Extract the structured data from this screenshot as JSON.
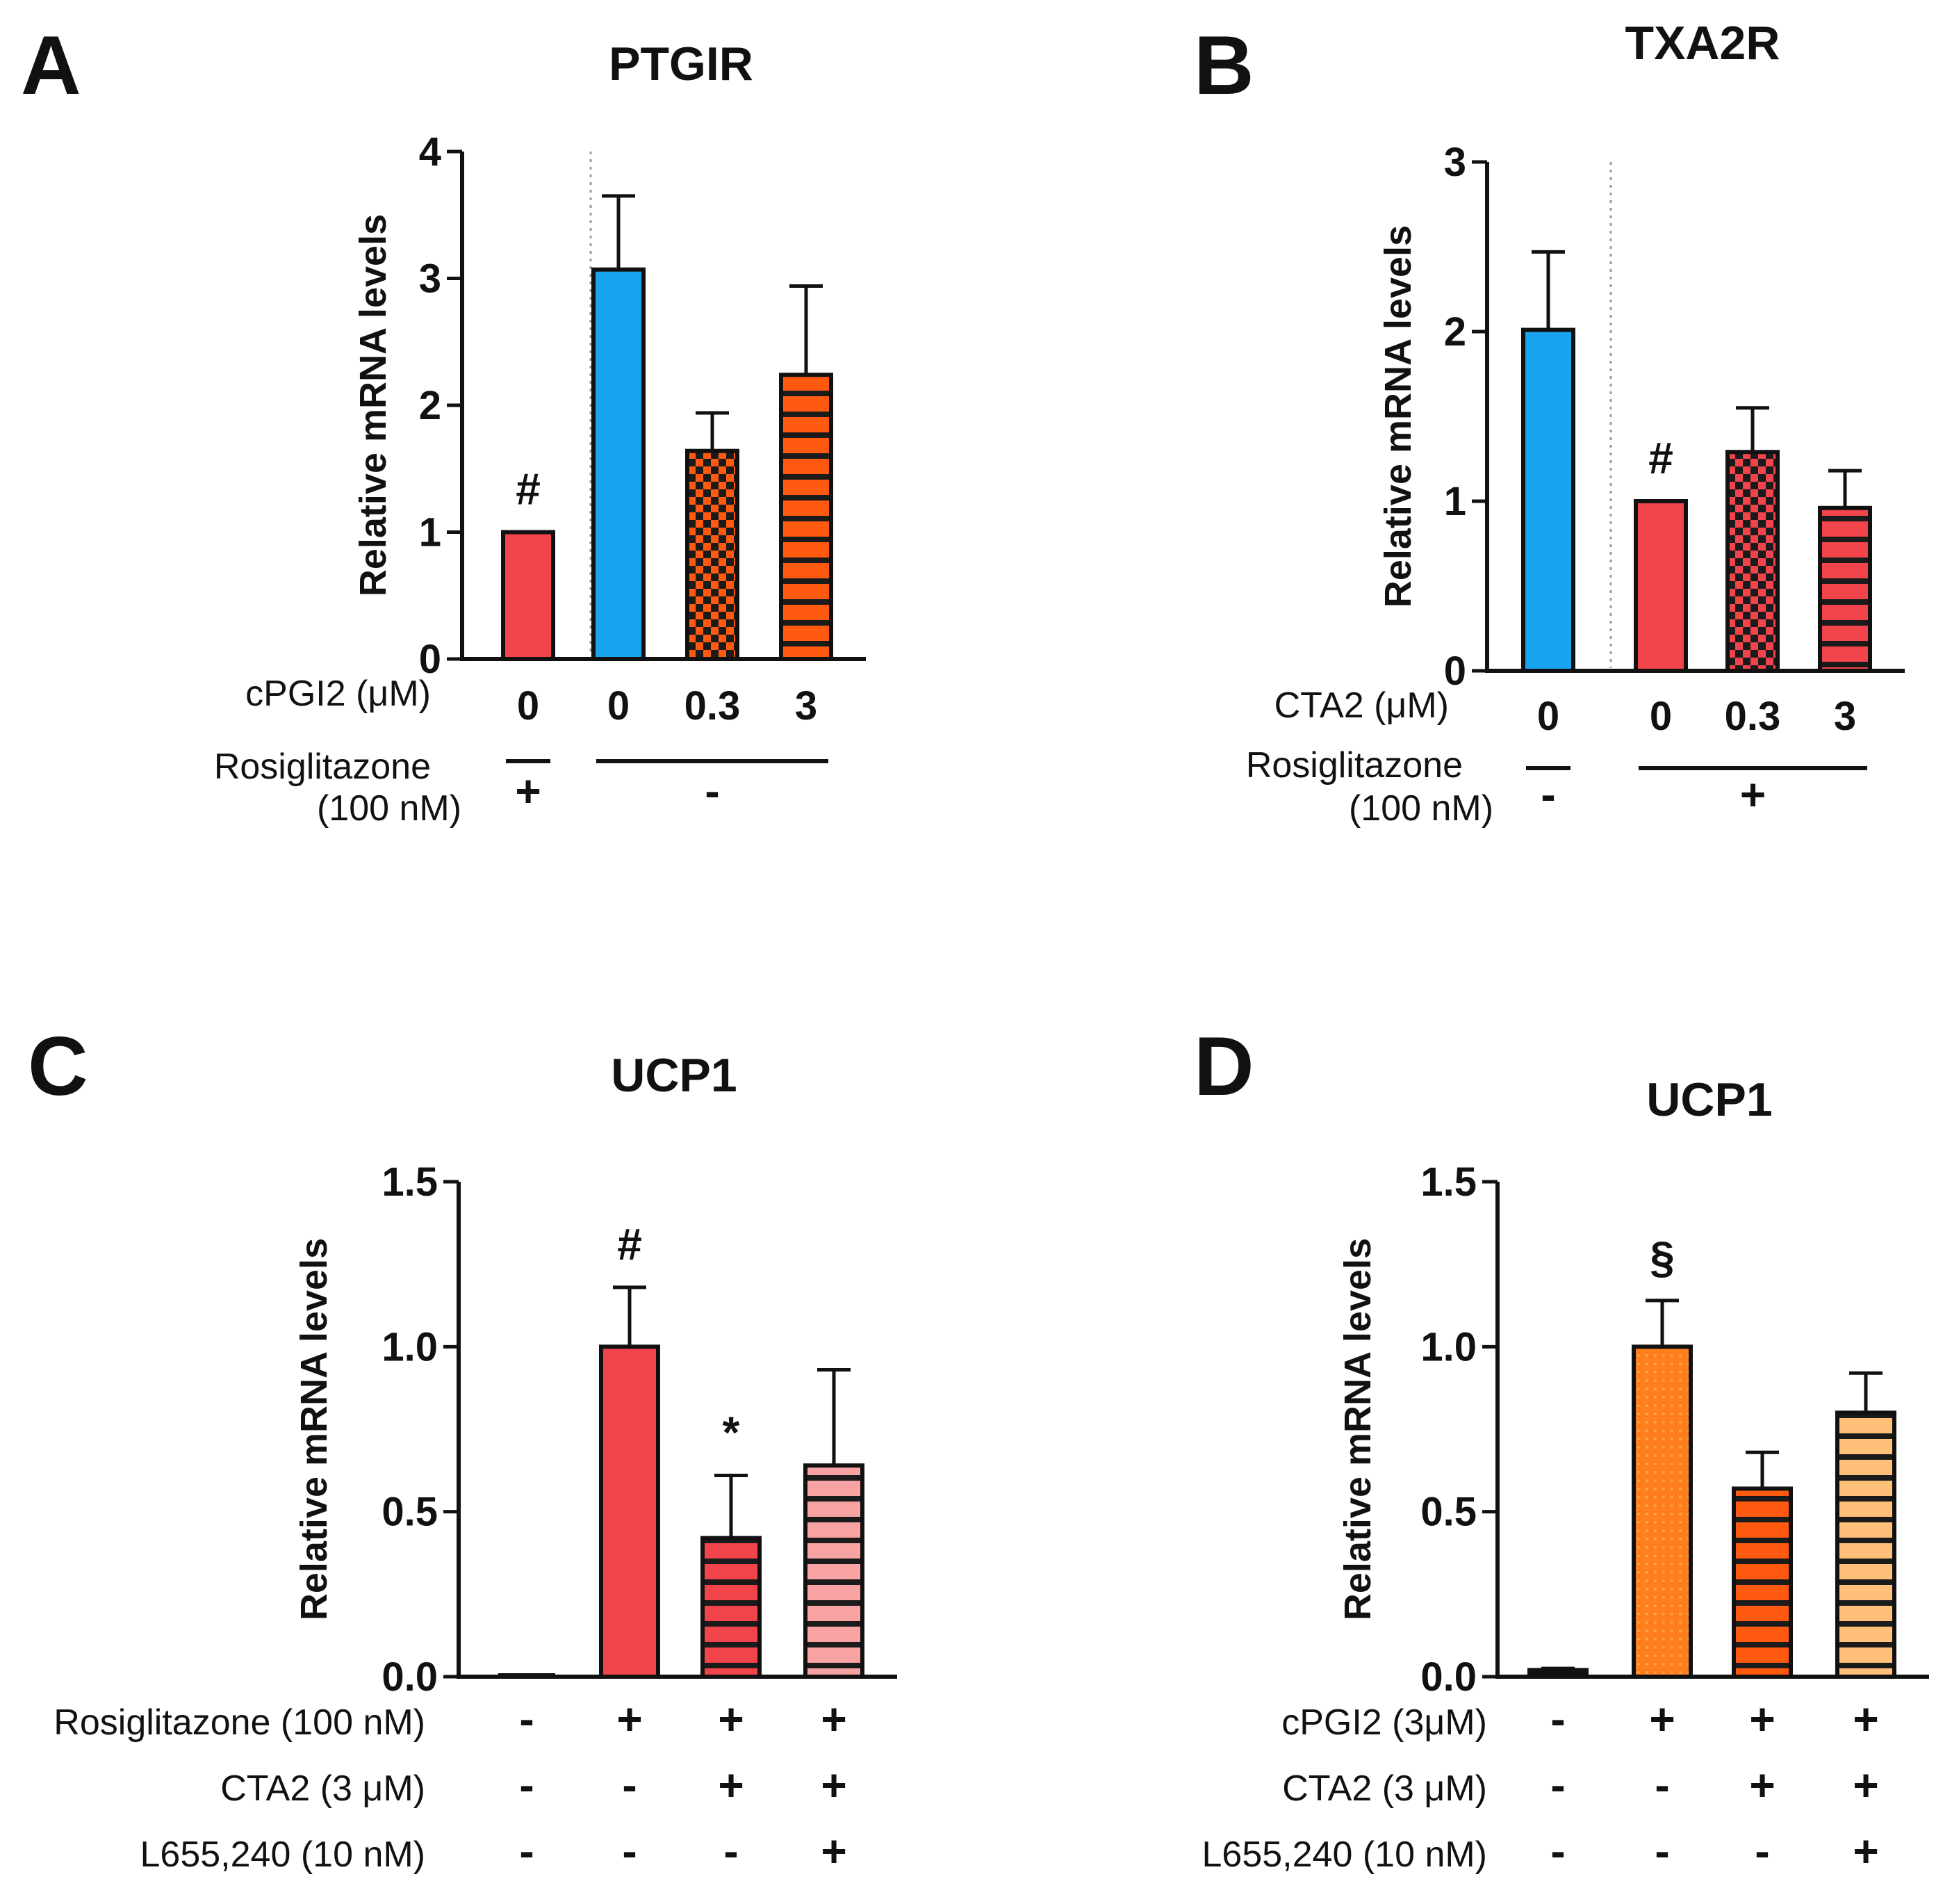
{
  "colors": {
    "red": "#f2444b",
    "blue": "#1aa3ee",
    "orange": "#ff5a10",
    "light_orange": "#ff8f33",
    "pink": "#f8a3a3",
    "peach": "#ffc07a",
    "black": "#111111"
  },
  "chart_data": [
    {
      "panel": "A",
      "type": "bar",
      "title": "PTGIR",
      "ylabel": "Relative mRNA levels",
      "ylim": [
        0,
        4
      ],
      "yticks": [
        0,
        1,
        2,
        3,
        4
      ],
      "ytick_labels": [
        "0",
        "1",
        "2",
        "3",
        "4"
      ],
      "categories": [
        "0",
        "0",
        "0.3",
        "3"
      ],
      "values": [
        1.0,
        3.07,
        1.64,
        2.24
      ],
      "errors": [
        0,
        0.58,
        0.3,
        0.7
      ],
      "fills": [
        "red",
        "blue",
        "orange-checker",
        "orange-stripe"
      ],
      "annotations": [
        {
          "bar": 0,
          "text": "#"
        }
      ],
      "divider_after_bar": 0,
      "conditions": [
        {
          "label": "cPGI2 (μM)",
          "style": "categories"
        },
        {
          "label": "Rosiglitazone",
          "sublabel": "(100 nM)",
          "style": "grouped",
          "groups": [
            {
              "bars": [
                0,
                0
              ],
              "text": "+"
            },
            {
              "bars": [
                1,
                3
              ],
              "text": "-"
            }
          ]
        }
      ]
    },
    {
      "panel": "B",
      "type": "bar",
      "title": "TXA2R",
      "ylabel": "Relative mRNA levels",
      "ylim": [
        0,
        3
      ],
      "yticks": [
        0,
        1,
        2,
        3
      ],
      "ytick_labels": [
        "0",
        "1",
        "2",
        "3"
      ],
      "categories": [
        "0",
        "0",
        "0.3",
        "3"
      ],
      "values": [
        2.01,
        1.0,
        1.29,
        0.96
      ],
      "errors": [
        0.46,
        0,
        0.26,
        0.22
      ],
      "fills": [
        "blue",
        "red",
        "red-checker",
        "red-stripe"
      ],
      "annotations": [
        {
          "bar": 1,
          "text": "#"
        }
      ],
      "divider_after_bar": 0,
      "conditions": [
        {
          "label": "CTA2 (μM)",
          "style": "categories"
        },
        {
          "label": "Rosiglitazone",
          "sublabel": "(100 nM)",
          "style": "grouped",
          "groups": [
            {
              "bars": [
                0,
                0
              ],
              "text": "-"
            },
            {
              "bars": [
                1,
                3
              ],
              "text": "+"
            }
          ]
        }
      ]
    },
    {
      "panel": "C",
      "type": "bar",
      "title": "UCP1",
      "ylabel": "Relative mRNA levels",
      "ylim": [
        0,
        1.5
      ],
      "yticks": [
        0,
        0.5,
        1.0,
        1.5
      ],
      "ytick_labels": [
        "0.0",
        "0.5",
        "1.0",
        "1.5"
      ],
      "categories": [
        "",
        "",
        "",
        ""
      ],
      "values": [
        0.003,
        1.0,
        0.42,
        0.64
      ],
      "errors": [
        0,
        0.18,
        0.19,
        0.29
      ],
      "fills": [
        "none",
        "red",
        "red-stripe",
        "pink-stripe"
      ],
      "annotations": [
        {
          "bar": 1,
          "text": "#"
        },
        {
          "bar": 2,
          "text": "*"
        }
      ],
      "conditions": [
        {
          "label": "Rosiglitazone (100 nM)",
          "signs": [
            "-",
            "+",
            "+",
            "+"
          ]
        },
        {
          "label": "CTA2 (3 μM)",
          "signs": [
            "-",
            "-",
            "+",
            "+"
          ]
        },
        {
          "label": "L655,240 (10 nM)",
          "signs": [
            "-",
            "-",
            "-",
            "+"
          ]
        }
      ]
    },
    {
      "panel": "D",
      "type": "bar",
      "title": "UCP1",
      "ylabel": "Relative mRNA levels",
      "ylim": [
        0,
        1.5
      ],
      "yticks": [
        0,
        0.5,
        1.0,
        1.5
      ],
      "ytick_labels": [
        "0.0",
        "0.5",
        "1.0",
        "1.5"
      ],
      "categories": [
        "",
        "",
        "",
        ""
      ],
      "values": [
        0.02,
        1.0,
        0.57,
        0.8
      ],
      "errors": [
        0.005,
        0.14,
        0.11,
        0.12
      ],
      "fills": [
        "black",
        "light-orange-dots",
        "orange-stripe",
        "peach-stripe"
      ],
      "annotations": [
        {
          "bar": 1,
          "text": "§"
        }
      ],
      "conditions": [
        {
          "label": "cPGI2 (3μM)",
          "signs": [
            "-",
            "+",
            "+",
            "+"
          ]
        },
        {
          "label": "CTA2 (3 μM)",
          "signs": [
            "-",
            "-",
            "+",
            "+"
          ]
        },
        {
          "label": "L655,240 (10 nM)",
          "signs": [
            "-",
            "-",
            "-",
            "+"
          ]
        }
      ]
    }
  ]
}
